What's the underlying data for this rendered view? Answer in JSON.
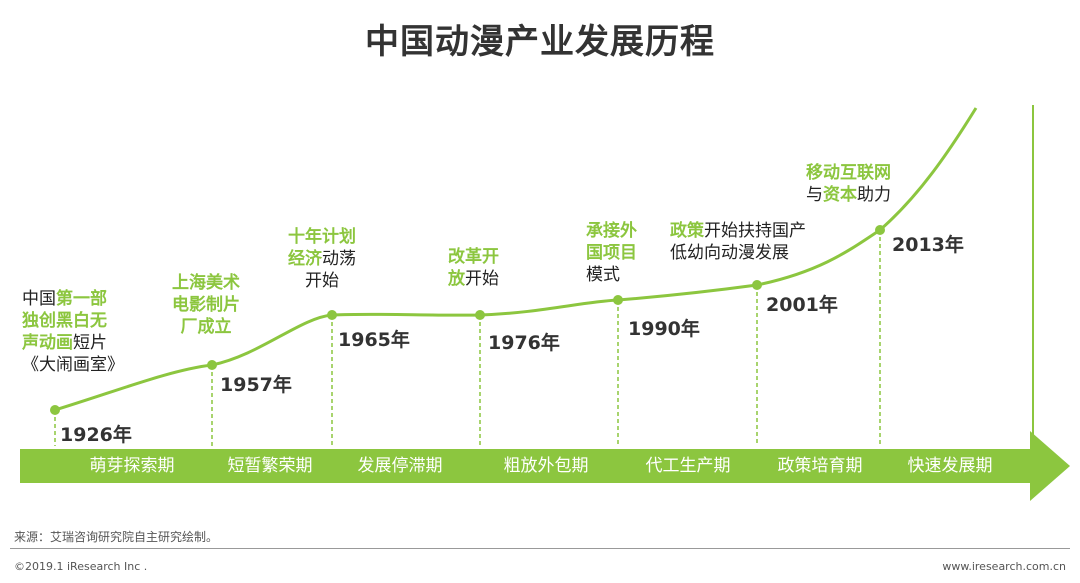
{
  "title": "中国动漫产业发展历程",
  "milestones": [
    {
      "year": "1926年",
      "parts": [
        [
          "中国",
          false
        ],
        [
          "第一部",
          true
        ],
        [
          "\n",
          false
        ],
        [
          "独创黑白无",
          true
        ],
        [
          "\n",
          false
        ],
        [
          "声动画",
          true
        ],
        [
          "短片",
          false
        ],
        [
          "\n",
          false
        ],
        [
          "《大闹画室》",
          false
        ]
      ]
    },
    {
      "year": "1957年",
      "parts": [
        [
          "上海美术",
          true
        ],
        [
          "\n",
          false
        ],
        [
          "电影制片",
          true
        ],
        [
          "\n",
          false
        ],
        [
          "厂成立",
          true
        ]
      ]
    },
    {
      "year": "1965年",
      "parts": [
        [
          "十年计划",
          true
        ],
        [
          "\n",
          false
        ],
        [
          "经济",
          true
        ],
        [
          "动荡",
          false
        ],
        [
          "\n",
          false
        ],
        [
          "开始",
          false
        ]
      ]
    },
    {
      "year": "1976年",
      "parts": [
        [
          "改革开",
          true
        ],
        [
          "\n",
          false
        ],
        [
          "放",
          true
        ],
        [
          "开始",
          false
        ]
      ]
    },
    {
      "year": "1990年",
      "parts": [
        [
          "承接外",
          true
        ],
        [
          "\n",
          false
        ],
        [
          "国项目",
          true
        ],
        [
          "\n",
          false
        ],
        [
          "模式",
          false
        ]
      ]
    },
    {
      "year": "2001年",
      "parts": [
        [
          "政策",
          true
        ],
        [
          "开始扶持国产",
          false
        ],
        [
          "\n",
          false
        ],
        [
          "低幼向动漫发展",
          false
        ]
      ]
    },
    {
      "year": "2013年",
      "parts": [
        [
          "移动互联网",
          true
        ],
        [
          "\n",
          false
        ],
        [
          "与",
          false
        ],
        [
          "资本",
          true
        ],
        [
          "助力",
          false
        ]
      ]
    }
  ],
  "phases": [
    "萌芽探索期",
    "短暂繁荣期",
    "发展停滞期",
    "粗放外包期",
    "代工生产期",
    "政策培育期",
    "快速发展期"
  ],
  "colors": {
    "accent": "#8cc63f",
    "text": "#333333"
  },
  "footer": {
    "source": "来源：艾瑞咨询研究院自主研究绘制。",
    "copyright": "©2019.1 iResearch Inc .",
    "site": "www.iresearch.com.cn"
  }
}
